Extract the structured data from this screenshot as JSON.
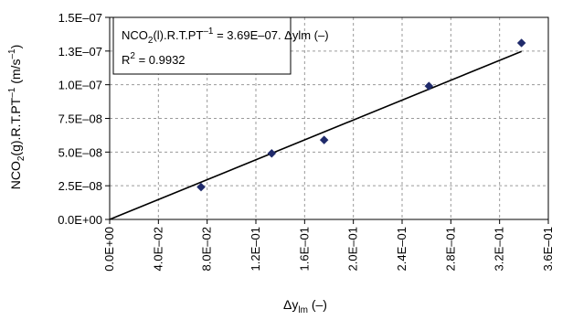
{
  "chart_data": {
    "type": "scatter",
    "xlabel": {
      "main": "Δy",
      "sub": "lm",
      "unit": " (–)"
    },
    "ylabel": {
      "pre": "NCO",
      "sub1": "2",
      "mid": "(g).R.T.PT",
      "sup1": "–1",
      "post": " (m/s",
      "sup2": "–1",
      "end": ")"
    },
    "xlim": [
      0,
      0.36
    ],
    "ylim": [
      0,
      1.5e-07
    ],
    "x_ticks": [
      0,
      0.04,
      0.08,
      0.12,
      0.16,
      0.2,
      0.24,
      0.28,
      0.32,
      0.36
    ],
    "x_tick_labels": [
      "0.0E+00",
      "4.0E–02",
      "8.0E–02",
      "1.2E–01",
      "1.6E–01",
      "2.0E–01",
      "2.4E–01",
      "2.8E–01",
      "3.2E–01",
      "3.6E–01"
    ],
    "y_ticks": [
      0,
      2.5e-08,
      5e-08,
      7.5e-08,
      1e-07,
      1.25e-07,
      1.5e-07
    ],
    "y_tick_labels": [
      "0.0E+00",
      "2.5E–08",
      "5.0E–08",
      "7.5E–08",
      "1.0E–07",
      "1.3E–07",
      "1.5E–07"
    ],
    "grid": true,
    "points": [
      {
        "x": 0.075,
        "y": 2.4e-08
      },
      {
        "x": 0.133,
        "y": 4.9e-08
      },
      {
        "x": 0.176,
        "y": 5.9e-08
      },
      {
        "x": 0.262,
        "y": 9.9e-08
      },
      {
        "x": 0.338,
        "y": 1.31e-07
      }
    ],
    "fit": {
      "slope": 3.69e-07,
      "x_range": [
        0,
        0.338
      ]
    },
    "annotation": {
      "line1_pre": "NCO",
      "line1_sub": "2",
      "line1_mid": "(l).R.T.PT",
      "line1_sup": "–1",
      "line1_post": " = 3.69E–07. Δylm (–)",
      "line2_pre": "R",
      "line2_sup": "2",
      "line2_post": " = 0.9932"
    },
    "colors": {
      "marker": "#1f2a6b",
      "line": "#000000",
      "grid": "#9a9a9a"
    }
  }
}
